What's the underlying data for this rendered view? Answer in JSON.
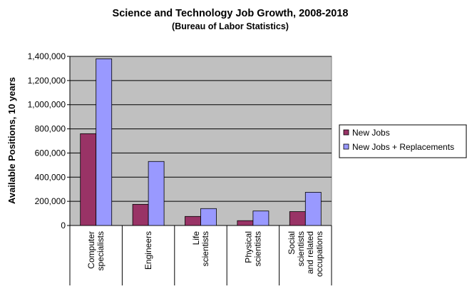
{
  "chart_data": {
    "type": "bar",
    "title": "Science and Technology Job Growth, 2008-2018",
    "subtitle": "(Bureau of Labor Statistics)",
    "xlabel": "",
    "ylabel": "Available Positions, 10 years",
    "ylim": [
      0,
      1400000
    ],
    "yticks": [
      0,
      200000,
      400000,
      600000,
      800000,
      1000000,
      1200000,
      1400000
    ],
    "ytick_labels": [
      "0",
      "200,000",
      "400,000",
      "600,000",
      "800,000",
      "1,000,000",
      "1,200,000",
      "1,400,000"
    ],
    "categories": [
      [
        "Computer",
        "specialists"
      ],
      [
        "Engineers"
      ],
      [
        "Life",
        "scientists"
      ],
      [
        "Physical",
        "scientists"
      ],
      [
        "Social",
        "scientists",
        "and related",
        "occupations"
      ]
    ],
    "series": [
      {
        "name": "New Jobs",
        "color": "#993366",
        "values": [
          760000,
          175000,
          75000,
          40000,
          115000
        ]
      },
      {
        "name": "New Jobs + Replacements",
        "color": "#9999FF",
        "values": [
          1380000,
          530000,
          140000,
          120000,
          275000
        ]
      }
    ],
    "plot_background": "#C0C0C0",
    "grid": true,
    "legend_position": "right"
  }
}
